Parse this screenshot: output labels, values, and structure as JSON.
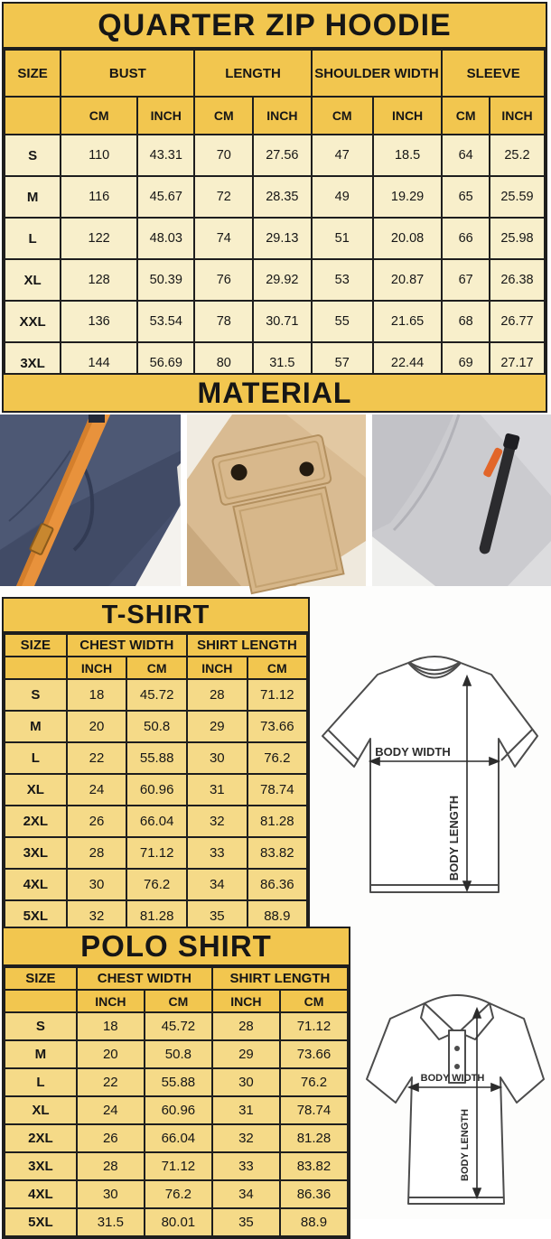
{
  "colors": {
    "gold": "#f2c64f",
    "cream": "#f8efcb",
    "row_yellow": "#f5da88",
    "border": "#1e1e1e",
    "navy_photo": "#47516e",
    "orange_cord": "#e8923c",
    "khaki_photo": "#d9bb92",
    "gray_photo": "#cbcbcf"
  },
  "hoodie_chart": {
    "title": "QUARTER ZIP HOODIE",
    "size_header": "SIZE",
    "groups": [
      "BUST",
      "LENGTH",
      "SHOULDER WIDTH",
      "SLEEVE"
    ],
    "units": [
      "CM",
      "INCH",
      "CM",
      "INCH",
      "CM",
      "INCH",
      "CM",
      "INCH"
    ],
    "rows": [
      {
        "size": "S",
        "cells": [
          "110",
          "43.31",
          "70",
          "27.56",
          "47",
          "18.5",
          "64",
          "25.2"
        ]
      },
      {
        "size": "M",
        "cells": [
          "116",
          "45.67",
          "72",
          "28.35",
          "49",
          "19.29",
          "65",
          "25.59"
        ]
      },
      {
        "size": "L",
        "cells": [
          "122",
          "48.03",
          "74",
          "29.13",
          "51",
          "20.08",
          "66",
          "25.98"
        ]
      },
      {
        "size": "XL",
        "cells": [
          "128",
          "50.39",
          "76",
          "29.92",
          "53",
          "20.87",
          "67",
          "26.38"
        ]
      },
      {
        "size": "XXL",
        "cells": [
          "136",
          "53.54",
          "78",
          "30.71",
          "55",
          "21.65",
          "68",
          "26.77"
        ]
      },
      {
        "size": "3XL",
        "cells": [
          "144",
          "56.69",
          "80",
          "31.5",
          "57",
          "22.44",
          "69",
          "27.17"
        ]
      }
    ]
  },
  "material": {
    "title": "MATERIAL",
    "photos": [
      {
        "name": "navy-fleece-orange-drawcord"
      },
      {
        "name": "khaki-snap-pocket"
      },
      {
        "name": "gray-fleece-zipper-pocket"
      }
    ]
  },
  "tshirt_chart": {
    "title": "T-SHIRT",
    "size_header": "SIZE",
    "groups": [
      "CHEST WIDTH",
      "SHIRT LENGTH"
    ],
    "units": [
      "INCH",
      "CM",
      "INCH",
      "CM"
    ],
    "rows": [
      {
        "size": "S",
        "cells": [
          "18",
          "45.72",
          "28",
          "71.12"
        ]
      },
      {
        "size": "M",
        "cells": [
          "20",
          "50.8",
          "29",
          "73.66"
        ]
      },
      {
        "size": "L",
        "cells": [
          "22",
          "55.88",
          "30",
          "76.2"
        ]
      },
      {
        "size": "XL",
        "cells": [
          "24",
          "60.96",
          "31",
          "78.74"
        ]
      },
      {
        "size": "2XL",
        "cells": [
          "26",
          "66.04",
          "32",
          "81.28"
        ]
      },
      {
        "size": "3XL",
        "cells": [
          "28",
          "71.12",
          "33",
          "83.82"
        ]
      },
      {
        "size": "4XL",
        "cells": [
          "30",
          "76.2",
          "34",
          "86.36"
        ]
      },
      {
        "size": "5XL",
        "cells": [
          "32",
          "81.28",
          "35",
          "88.9"
        ]
      }
    ]
  },
  "polo_chart": {
    "title": "POLO SHIRT",
    "size_header": "SIZE",
    "groups": [
      "CHEST WIDTH",
      "SHIRT LENGTH"
    ],
    "units": [
      "INCH",
      "CM",
      "INCH",
      "CM"
    ],
    "rows": [
      {
        "size": "S",
        "cells": [
          "18",
          "45.72",
          "28",
          "71.12"
        ]
      },
      {
        "size": "M",
        "cells": [
          "20",
          "50.8",
          "29",
          "73.66"
        ]
      },
      {
        "size": "L",
        "cells": [
          "22",
          "55.88",
          "30",
          "76.2"
        ]
      },
      {
        "size": "XL",
        "cells": [
          "24",
          "60.96",
          "31",
          "78.74"
        ]
      },
      {
        "size": "2XL",
        "cells": [
          "26",
          "66.04",
          "32",
          "81.28"
        ]
      },
      {
        "size": "3XL",
        "cells": [
          "28",
          "71.12",
          "33",
          "83.82"
        ]
      },
      {
        "size": "4XL",
        "cells": [
          "30",
          "76.2",
          "34",
          "86.36"
        ]
      },
      {
        "size": "5XL",
        "cells": [
          "31.5",
          "80.01",
          "35",
          "88.9"
        ]
      }
    ]
  },
  "diagram_labels": {
    "width": "BODY WIDTH",
    "length": "BODY LENGTH"
  }
}
